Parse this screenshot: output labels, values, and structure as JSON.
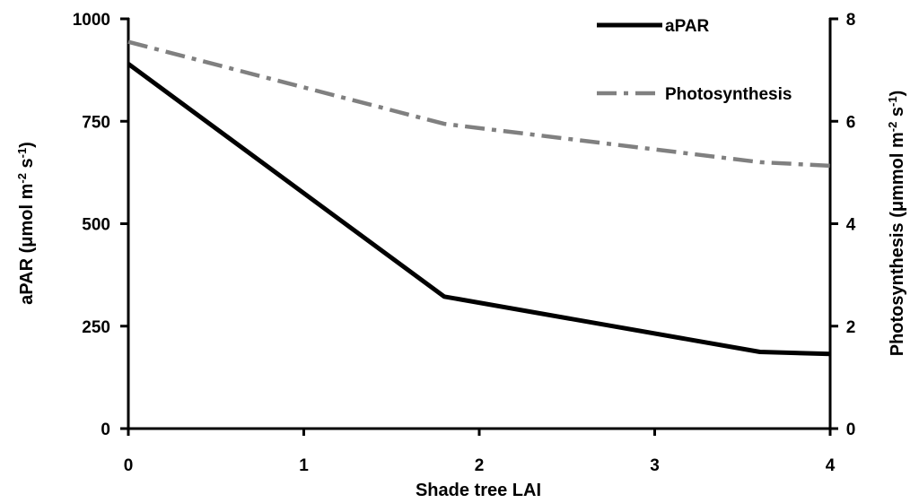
{
  "chart_data": {
    "type": "line",
    "x_title": "Shade tree LAI",
    "y_left_title": {
      "main": "aPAR (μmol m",
      "sup1": "-2",
      "mid": " s",
      "sup2": "-1",
      "end": ")"
    },
    "y_right_title": {
      "main": "Photosynthesis (μmmol m",
      "sup1": "-2",
      "mid": " s",
      "sup2": "-1",
      "end": ")"
    },
    "xlim": [
      0,
      4
    ],
    "ylim_left": [
      0,
      1000
    ],
    "ylim_right": [
      0,
      8
    ],
    "x_ticks": [
      "0",
      "1",
      "2",
      "3",
      "4"
    ],
    "y_left_ticks": [
      "0",
      "250",
      "500",
      "750",
      "1000"
    ],
    "y_right_ticks": [
      "0",
      "2",
      "4",
      "6",
      "8"
    ],
    "grid": false,
    "legend_position": "top-right",
    "series": [
      {
        "name": "aPAR",
        "axis": "left",
        "color": "#000000",
        "style": "solid",
        "points": [
          {
            "x": 0,
            "y": 890
          },
          {
            "x": 1.8,
            "y": 322
          },
          {
            "x": 3.6,
            "y": 187
          },
          {
            "x": 4,
            "y": 182
          }
        ]
      },
      {
        "name": "Photosynthesis",
        "axis": "right",
        "color": "#808080",
        "style": "dash-dot",
        "points": [
          {
            "x": 0,
            "y": 7.55
          },
          {
            "x": 1.8,
            "y": 5.95
          },
          {
            "x": 3.6,
            "y": 5.2
          },
          {
            "x": 4,
            "y": 5.13
          }
        ]
      }
    ]
  }
}
